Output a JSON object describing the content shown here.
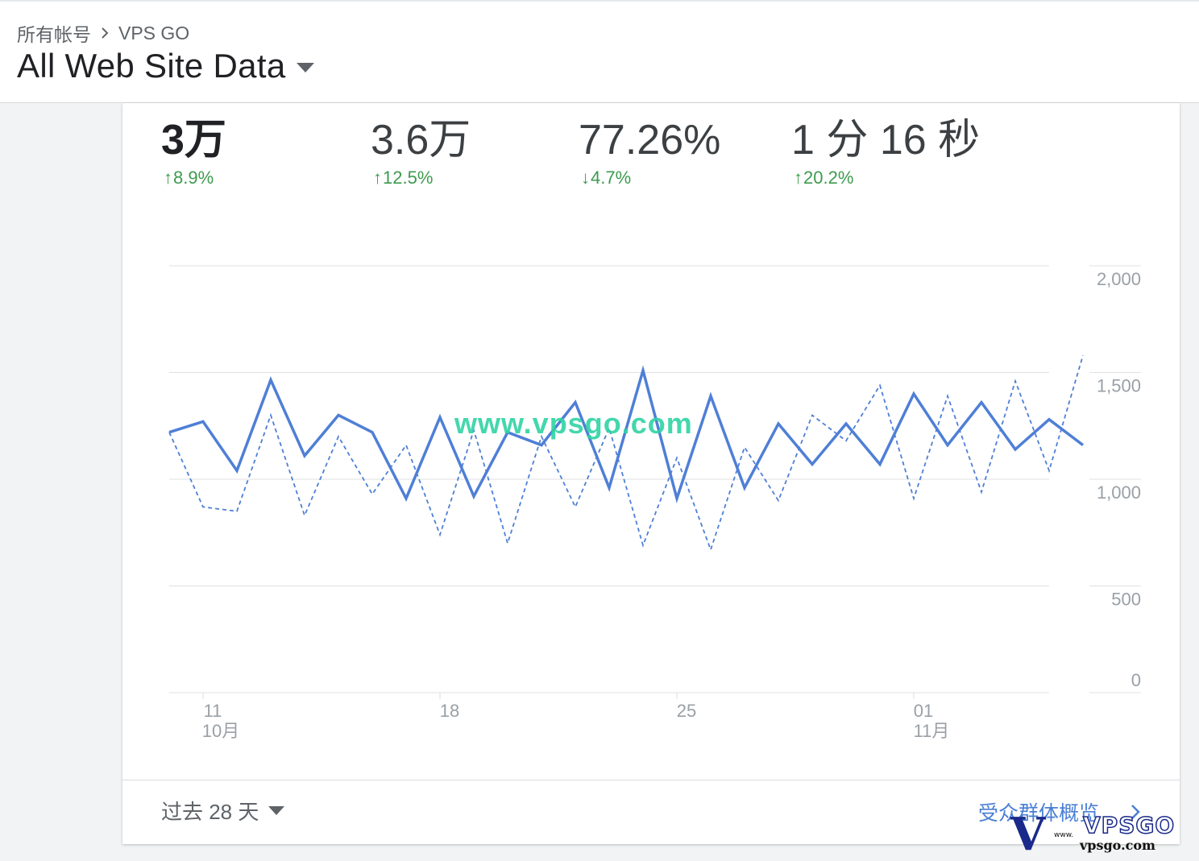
{
  "header": {
    "breadcrumb": {
      "account": "所有帐号",
      "property": "VPS GO"
    },
    "view_title": "All Web Site Data"
  },
  "metrics": [
    {
      "value": "3万",
      "change": "8.9%",
      "direction": "up"
    },
    {
      "value": "3.6万",
      "change": "12.5%",
      "direction": "up"
    },
    {
      "value": "77.26%",
      "change": "4.7%",
      "direction": "down"
    },
    {
      "value": "1 分 16 秒",
      "change": "20.2%",
      "direction": "up"
    }
  ],
  "chart_data": {
    "type": "line",
    "x": [
      "10-10",
      "10-11",
      "10-12",
      "10-13",
      "10-14",
      "10-15",
      "10-16",
      "10-17",
      "10-18",
      "10-19",
      "10-20",
      "10-21",
      "10-22",
      "10-23",
      "10-24",
      "10-25",
      "10-26",
      "10-27",
      "10-28",
      "10-29",
      "10-30",
      "10-31",
      "11-01",
      "11-02",
      "11-03",
      "11-04",
      "11-05",
      "11-06"
    ],
    "series": [
      {
        "style": "solid",
        "values": [
          1220,
          1270,
          1040,
          1465,
          1110,
          1300,
          1220,
          910,
          1290,
          920,
          1220,
          1160,
          1360,
          960,
          1510,
          910,
          1390,
          960,
          1260,
          1070,
          1260,
          1070,
          1400,
          1160,
          1360,
          1140,
          1280,
          1160
        ]
      },
      {
        "style": "dashed",
        "values": [
          1220,
          870,
          850,
          1300,
          830,
          1200,
          930,
          1160,
          740,
          1230,
          700,
          1200,
          870,
          1240,
          690,
          1100,
          670,
          1150,
          900,
          1300,
          1180,
          1440,
          910,
          1390,
          940,
          1460,
          1040,
          1580
        ]
      }
    ],
    "ylim": [
      0,
      2000
    ],
    "y_ticks": [
      "0",
      "500",
      "1,000",
      "1,500",
      "2,000"
    ],
    "x_ticks": [
      {
        "day": "11",
        "month": "10月"
      },
      {
        "day": "18",
        "month": ""
      },
      {
        "day": "25",
        "month": ""
      },
      {
        "day": "01",
        "month": "11月"
      }
    ],
    "grid": true,
    "colors": {
      "line": "#4f7fd6",
      "grid": "#e0e0e0"
    }
  },
  "footer": {
    "range_label": "过去 28 天",
    "link_label": "受众群体概览"
  },
  "watermark": "www.vpsgo.com",
  "logo": {
    "mark": "V",
    "word": "VPSGO",
    "url": "vpsgo.com",
    "prefix": "www."
  }
}
